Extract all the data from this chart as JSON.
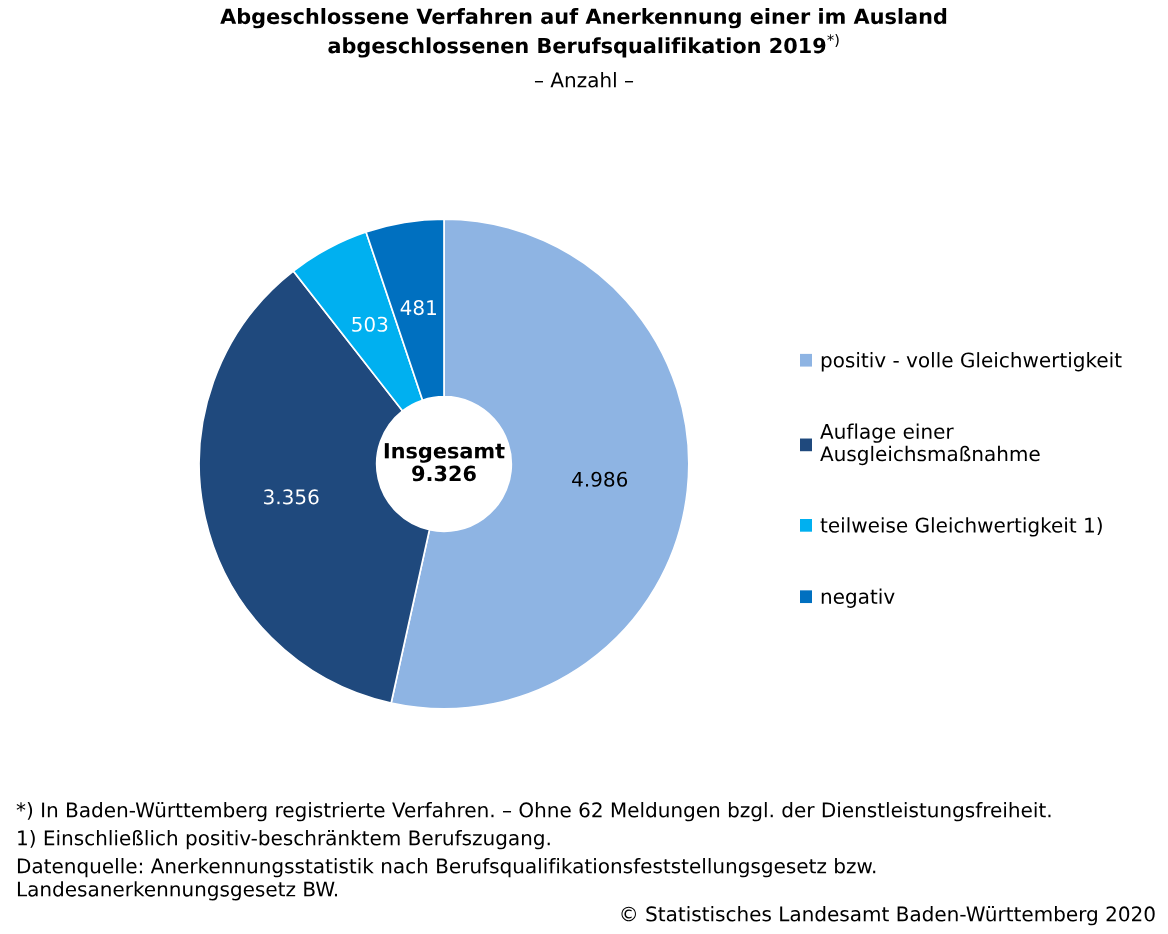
{
  "chart_data": {
    "type": "donut",
    "title": "Abgeschlossene Verfahren auf Anerkennung einer im Ausland\nabgeschlossenen Berufsqualifikation 2019$^{*)}$",
    "subtitle": "– Anzahl –",
    "categories": [
      "positiv - volle Gleichwertigkeit",
      "Auflage einer\nAusgleichsmaßnahme",
      "teilweise Gleichwertigkeit 1)",
      "negativ"
    ],
    "values": [
      4986,
      3356,
      503,
      481
    ],
    "colors": [
      "#8eb4e3",
      "#1f497d",
      "#00b0f0",
      "#0070c0"
    ],
    "value_labels": [
      "4.986",
      "3.356",
      "503",
      "481"
    ],
    "legend": "right",
    "annotations": [
      "Insgesamt\n9.326",
      "*) In Baden-Württemberg registrierte Verfahren. – Ohne 62 Meldungen bzgl. der Dienstleistungsfreiheit.",
      "1) Einschließlich positiv-beschränktem Berufszugang.",
      "Datenquelle: Anerkennungsstatistik nach Berufsqualifikationsfeststellungsgesetz bzw.\nLandesanerkennungsgesetz BW.",
      "© Statistisches Landesamt Baden-Württemberg 2020"
    ]
  }
}
